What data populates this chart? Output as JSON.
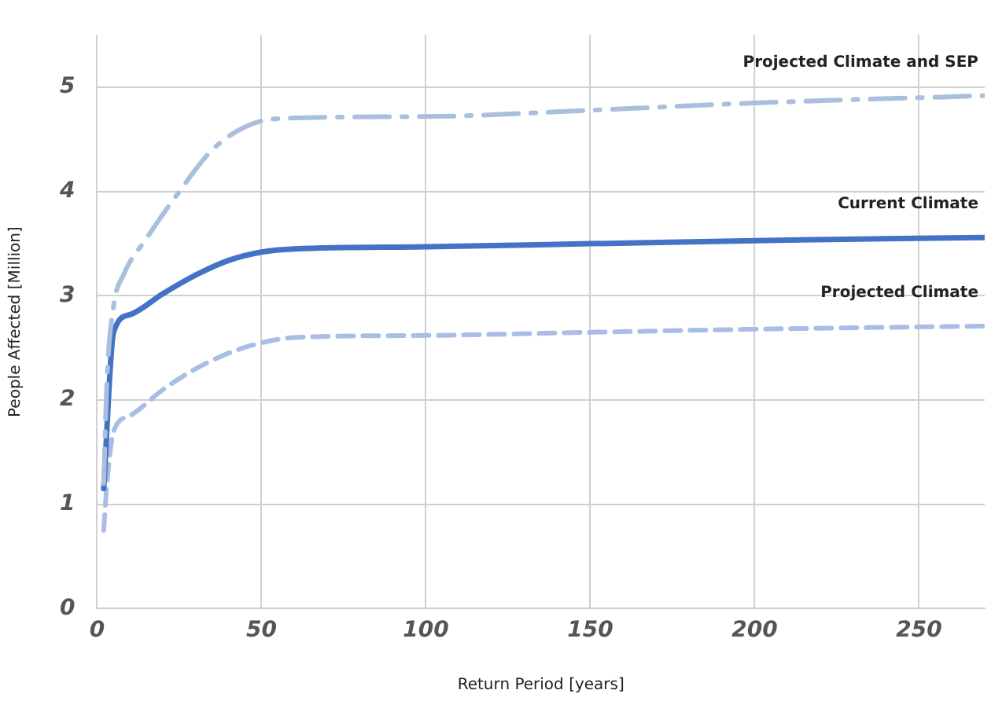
{
  "chart_data": {
    "type": "line",
    "xlabel": "Return Period [years]",
    "ylabel": "People Affected [Million]",
    "xlim": [
      0,
      270
    ],
    "xticks": [
      0,
      50,
      100,
      150,
      200,
      250
    ],
    "ylim": [
      0,
      5.5
    ],
    "yticks": [
      0,
      1,
      2,
      3,
      4,
      5
    ],
    "grid": true,
    "legend": false,
    "marker": "none",
    "series": [
      {
        "name": "Projected Climate and SEP",
        "color": "#a9bfdd",
        "line_style": "dashdot",
        "x": [
          2,
          3,
          5,
          8,
          15,
          25,
          35,
          45,
          55,
          100,
          150,
          200,
          270
        ],
        "values": [
          1.2,
          2.2,
          2.9,
          3.2,
          3.55,
          4.0,
          4.4,
          4.62,
          4.7,
          4.72,
          4.78,
          4.85,
          4.92
        ]
      },
      {
        "name": "Current Climate",
        "color": "#4472c4",
        "line_style": "solid",
        "x": [
          2,
          5,
          10,
          20,
          30,
          40,
          50,
          60,
          100,
          150,
          200,
          270
        ],
        "values": [
          1.15,
          2.65,
          2.82,
          3.02,
          3.2,
          3.34,
          3.42,
          3.45,
          3.47,
          3.5,
          3.53,
          3.56
        ]
      },
      {
        "name": "Projected Climate",
        "color": "#a9bde6",
        "line_style": "dashed",
        "x": [
          2,
          3,
          5,
          10,
          20,
          30,
          40,
          50,
          60,
          100,
          150,
          200,
          270
        ],
        "values": [
          0.75,
          1.2,
          1.7,
          1.85,
          2.1,
          2.3,
          2.45,
          2.55,
          2.6,
          2.62,
          2.65,
          2.68,
          2.71
        ]
      }
    ]
  }
}
